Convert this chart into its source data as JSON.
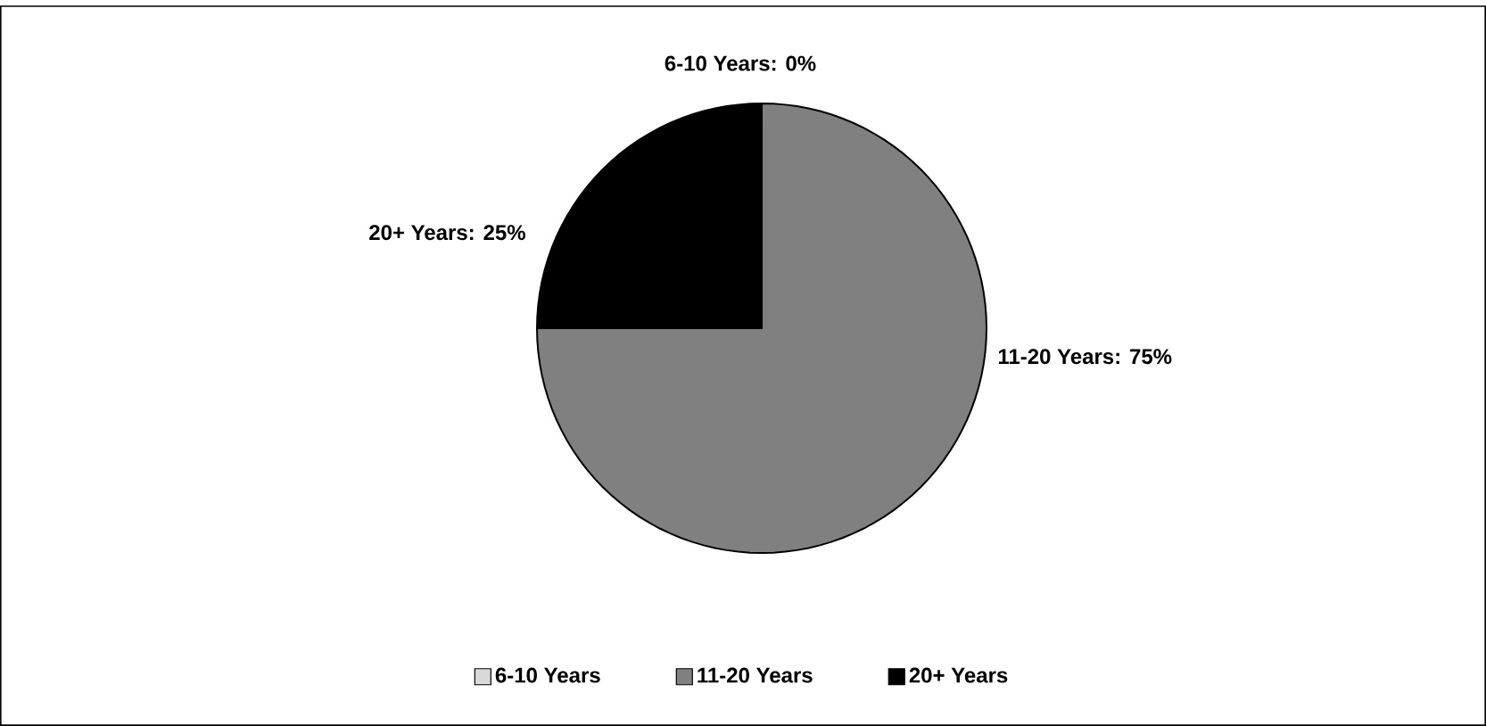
{
  "chart_data": {
    "type": "pie",
    "categories": [
      "6-10 Years",
      "11-20 Years",
      "20+ Years"
    ],
    "values": [
      0,
      75,
      25
    ],
    "colors": [
      "#d9d9d9",
      "#808080",
      "#000000"
    ],
    "value_labels": [
      "6-10 Years: 0%",
      "11-20 Years: 75%",
      "20+ Years: 25%"
    ],
    "legend": "bottom"
  }
}
